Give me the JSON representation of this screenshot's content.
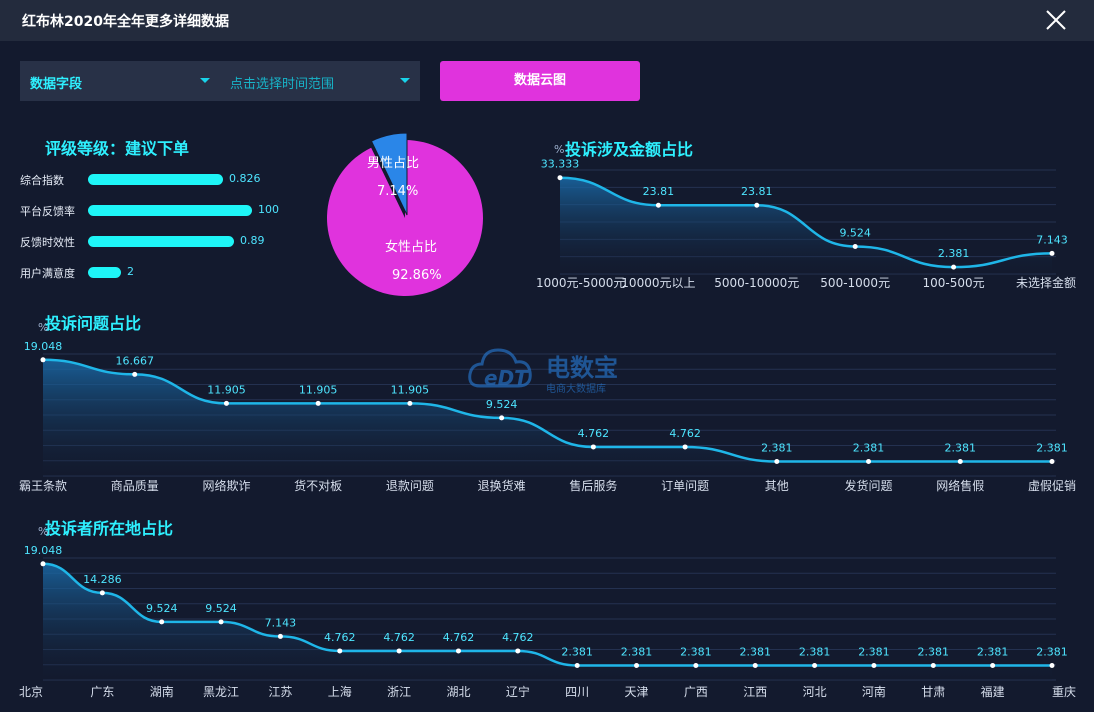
{
  "window": {
    "title": "红布林2020年全年更多详细数据"
  },
  "filters": {
    "field_select": "数据字段",
    "time_select": "点击选择时间范围",
    "cloud_button": "数据云图"
  },
  "rating": {
    "title": "评级等级：建议下单",
    "items": [
      {
        "label": "综合指数",
        "value": "0.826",
        "fraction": 0.826
      },
      {
        "label": "平台反馈率",
        "value": "100",
        "fraction": 1.0
      },
      {
        "label": "反馈时效性",
        "value": "0.89",
        "fraction": 0.89
      },
      {
        "label": "用户满意度",
        "value": "2",
        "fraction": 0.2
      }
    ]
  },
  "watermark": {
    "logo": "eDT",
    "name": "电数宝",
    "sub": "电商大数据库"
  },
  "chart_data": [
    {
      "type": "pie",
      "slices": [
        {
          "label": "男性占比",
          "value": 7.14,
          "display": "7.14%",
          "color": "#2a86e8"
        },
        {
          "label": "女性占比",
          "value": 92.86,
          "display": "92.86%",
          "color": "#e033dd"
        }
      ]
    },
    {
      "type": "area",
      "title": "投诉涉及金额占比",
      "ylabel": "%",
      "ylim": [
        0,
        36
      ],
      "categories": [
        "1000元-5000元",
        "10000元以上",
        "5000-10000元",
        "500-1000元",
        "100-500元",
        "未选择金额"
      ],
      "series": [
        {
          "values": [
            33.333,
            23.81,
            23.81,
            9.524,
            2.381,
            7.143
          ]
        }
      ]
    },
    {
      "type": "area",
      "title": "投诉问题占比",
      "ylabel": "%",
      "ylim": [
        0,
        20
      ],
      "categories": [
        "霸王条款",
        "商品质量",
        "网络欺诈",
        "货不对板",
        "退款问题",
        "退换货难",
        "售后服务",
        "订单问题",
        "其他",
        "发货问题",
        "网络售假",
        "虚假促销"
      ],
      "series": [
        {
          "values": [
            19.048,
            16.667,
            11.905,
            11.905,
            11.905,
            9.524,
            4.762,
            4.762,
            2.381,
            2.381,
            2.381,
            2.381
          ]
        }
      ]
    },
    {
      "type": "area",
      "title": "投诉者所在地占比",
      "ylabel": "%",
      "ylim": [
        0,
        20
      ],
      "categories": [
        "北京",
        "广东",
        "湖南",
        "黑龙江",
        "江苏",
        "上海",
        "浙江",
        "湖北",
        "辽宁",
        "四川",
        "天津",
        "广西",
        "江西",
        "河北",
        "河南",
        "甘肃",
        "福建",
        "重庆"
      ],
      "series": [
        {
          "values": [
            19.048,
            14.286,
            9.524,
            9.524,
            7.143,
            4.762,
            4.762,
            4.762,
            4.762,
            2.381,
            2.381,
            2.381,
            2.381,
            2.381,
            2.381,
            2.381,
            2.381,
            2.381
          ]
        }
      ]
    }
  ],
  "colors": {
    "accent": "#2ef0ff",
    "line": "#1fb6e8",
    "bar": "#1ef5f7",
    "button": "#e033dd",
    "label": "#4ee5ff"
  }
}
